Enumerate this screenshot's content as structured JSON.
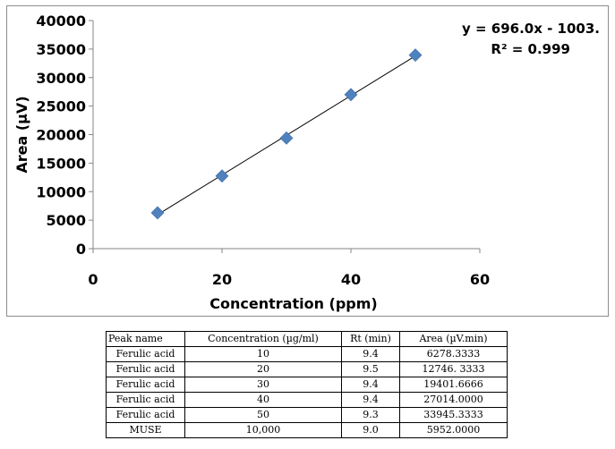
{
  "chart_data": {
    "type": "scatter",
    "title": "",
    "xlabel": "Concentration (ppm)",
    "ylabel": "Area (µV)",
    "xlim": [
      0,
      60
    ],
    "ylim": [
      0,
      40000
    ],
    "x_ticks": [
      "0",
      "20",
      "40",
      "60"
    ],
    "y_ticks": [
      "0",
      "5000",
      "10000",
      "15000",
      "20000",
      "25000",
      "30000",
      "35000",
      "40000"
    ],
    "grid": false,
    "legend": "none",
    "series": [
      {
        "marker_color": "#4f81bd",
        "x": [
          10,
          20,
          30,
          40,
          50
        ],
        "y": [
          6278.3333,
          12746.3333,
          19401.6666,
          27014.0,
          33945.3333
        ]
      }
    ],
    "trendline": {
      "type": "linear",
      "slope": 696.0,
      "intercept": -1003.0,
      "equation_label": "y = 696.0x - 1003.",
      "r2_label": "R² = 0.999",
      "color": "#000000"
    }
  },
  "table": {
    "headers": [
      "Peak name",
      "Concentration (µg/ml)",
      "Rt (min)",
      "Area (µV.min)"
    ],
    "rows": [
      [
        "Ferulic acid",
        "10",
        "9.4",
        "6278.3333"
      ],
      [
        "Ferulic acid",
        "20",
        "9.5",
        "12746. 3333"
      ],
      [
        "Ferulic acid",
        "30",
        "9.4",
        "19401.6666"
      ],
      [
        "Ferulic acid",
        "40",
        "9.4",
        "27014.0000"
      ],
      [
        "Ferulic acid",
        "50",
        "9.3",
        "33945.3333"
      ],
      [
        "MUSE",
        "10,000",
        "9.0",
        "5952.0000"
      ]
    ]
  }
}
